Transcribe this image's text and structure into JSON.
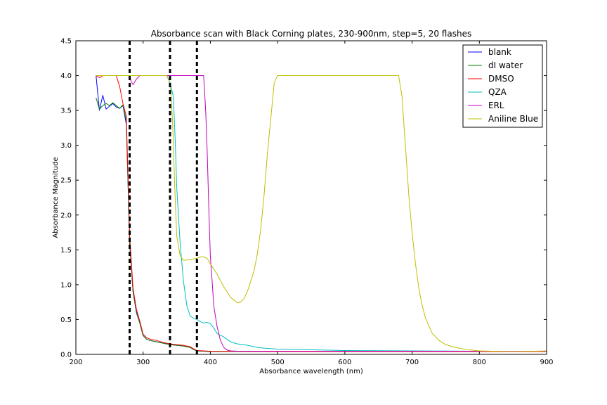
{
  "chart_data": {
    "type": "line",
    "title": "Absorbance scan with Black Corning plates, 230-900nm, step=5, 20 flashes",
    "xlabel": "Absorbance wavelength (nm)",
    "ylabel": "Absorbance Magnitude",
    "xlim": [
      200,
      900
    ],
    "ylim": [
      0,
      4.5
    ],
    "xticks": [
      200,
      300,
      400,
      500,
      600,
      700,
      800,
      900
    ],
    "yticks": [
      0.0,
      0.5,
      1.0,
      1.5,
      2.0,
      2.5,
      3.0,
      3.5,
      4.0,
      4.5
    ],
    "xtick_labels": [
      "200",
      "300",
      "400",
      "500",
      "600",
      "700",
      "800",
      "900"
    ],
    "ytick_labels": [
      "0.0",
      "0.5",
      "1.0",
      "1.5",
      "2.0",
      "2.5",
      "3.0",
      "3.5",
      "4.0",
      "4.5"
    ],
    "grid": false,
    "legend_position": "top-right",
    "vlines": [
      {
        "x": 280,
        "style": "dashed",
        "color": "#000000"
      },
      {
        "x": 340,
        "style": "dashed",
        "color": "#000000"
      },
      {
        "x": 380,
        "style": "dashed",
        "color": "#000000"
      }
    ],
    "series": [
      {
        "name": "blank",
        "color": "#0000ff",
        "points": [
          [
            230,
            4.0
          ],
          [
            235,
            3.5
          ],
          [
            240,
            3.72
          ],
          [
            245,
            3.52
          ],
          [
            250,
            3.56
          ],
          [
            255,
            3.6
          ],
          [
            260,
            3.55
          ],
          [
            265,
            3.53
          ],
          [
            270,
            3.57
          ],
          [
            275,
            3.3
          ],
          [
            278,
            2.3
          ],
          [
            280,
            1.6
          ],
          [
            285,
            0.9
          ],
          [
            290,
            0.6
          ],
          [
            295,
            0.45
          ],
          [
            300,
            0.27
          ],
          [
            305,
            0.22
          ],
          [
            310,
            0.2
          ],
          [
            320,
            0.18
          ],
          [
            330,
            0.16
          ],
          [
            340,
            0.14
          ],
          [
            350,
            0.13
          ],
          [
            360,
            0.12
          ],
          [
            370,
            0.1
          ],
          [
            375,
            0.07
          ],
          [
            380,
            0.05
          ],
          [
            390,
            0.045
          ],
          [
            400,
            0.04
          ],
          [
            500,
            0.04
          ],
          [
            600,
            0.04
          ],
          [
            700,
            0.04
          ],
          [
            800,
            0.04
          ],
          [
            900,
            0.04
          ]
        ]
      },
      {
        "name": "dI water",
        "color": "#008000",
        "points": [
          [
            230,
            3.68
          ],
          [
            235,
            3.52
          ],
          [
            240,
            3.57
          ],
          [
            245,
            3.6
          ],
          [
            250,
            3.57
          ],
          [
            255,
            3.61
          ],
          [
            260,
            3.57
          ],
          [
            265,
            3.53
          ],
          [
            270,
            3.58
          ],
          [
            275,
            3.35
          ],
          [
            278,
            2.3
          ],
          [
            280,
            1.6
          ],
          [
            285,
            0.9
          ],
          [
            290,
            0.62
          ],
          [
            295,
            0.45
          ],
          [
            300,
            0.27
          ],
          [
            305,
            0.22
          ],
          [
            310,
            0.2
          ],
          [
            320,
            0.18
          ],
          [
            330,
            0.16
          ],
          [
            340,
            0.14
          ],
          [
            350,
            0.13
          ],
          [
            360,
            0.12
          ],
          [
            370,
            0.1
          ],
          [
            375,
            0.07
          ],
          [
            380,
            0.05
          ],
          [
            390,
            0.045
          ],
          [
            400,
            0.04
          ],
          [
            500,
            0.04
          ],
          [
            600,
            0.04
          ],
          [
            700,
            0.04
          ],
          [
            800,
            0.04
          ],
          [
            900,
            0.04
          ]
        ]
      },
      {
        "name": "DMSO",
        "color": "#ff0000",
        "points": [
          [
            230,
            4.0
          ],
          [
            235,
            3.97
          ],
          [
            240,
            4.0
          ],
          [
            255,
            4.0
          ],
          [
            260,
            4.0
          ],
          [
            265,
            3.85
          ],
          [
            270,
            3.6
          ],
          [
            275,
            3.42
          ],
          [
            278,
            2.4
          ],
          [
            280,
            1.7
          ],
          [
            285,
            0.95
          ],
          [
            290,
            0.65
          ],
          [
            295,
            0.48
          ],
          [
            300,
            0.29
          ],
          [
            305,
            0.24
          ],
          [
            310,
            0.22
          ],
          [
            320,
            0.2
          ],
          [
            330,
            0.17
          ],
          [
            340,
            0.15
          ],
          [
            350,
            0.14
          ],
          [
            360,
            0.13
          ],
          [
            370,
            0.11
          ],
          [
            375,
            0.08
          ],
          [
            380,
            0.055
          ],
          [
            390,
            0.05
          ],
          [
            400,
            0.045
          ],
          [
            500,
            0.04
          ],
          [
            600,
            0.04
          ],
          [
            700,
            0.04
          ],
          [
            800,
            0.04
          ],
          [
            900,
            0.04
          ]
        ]
      },
      {
        "name": "QZA",
        "color": "#00bfbf",
        "points": [
          [
            230,
            4.0
          ],
          [
            335,
            4.0
          ],
          [
            340,
            3.9
          ],
          [
            345,
            3.7
          ],
          [
            348,
            3.0
          ],
          [
            350,
            2.4
          ],
          [
            355,
            1.6
          ],
          [
            360,
            1.05
          ],
          [
            365,
            0.7
          ],
          [
            370,
            0.55
          ],
          [
            375,
            0.52
          ],
          [
            380,
            0.5
          ],
          [
            385,
            0.47
          ],
          [
            390,
            0.45
          ],
          [
            395,
            0.46
          ],
          [
            400,
            0.44
          ],
          [
            405,
            0.38
          ],
          [
            410,
            0.3
          ],
          [
            420,
            0.25
          ],
          [
            430,
            0.18
          ],
          [
            440,
            0.15
          ],
          [
            450,
            0.14
          ],
          [
            460,
            0.12
          ],
          [
            470,
            0.1
          ],
          [
            480,
            0.09
          ],
          [
            500,
            0.075
          ],
          [
            550,
            0.065
          ],
          [
            600,
            0.055
          ],
          [
            700,
            0.05
          ],
          [
            800,
            0.045
          ],
          [
            900,
            0.045
          ]
        ]
      },
      {
        "name": "ERL",
        "color": "#bf00bf",
        "points": [
          [
            230,
            4.0
          ],
          [
            275,
            4.0
          ],
          [
            280,
            4.0
          ],
          [
            282,
            3.92
          ],
          [
            285,
            3.87
          ],
          [
            290,
            3.95
          ],
          [
            295,
            4.0
          ],
          [
            385,
            4.0
          ],
          [
            390,
            4.0
          ],
          [
            393,
            3.5
          ],
          [
            395,
            3.0
          ],
          [
            398,
            2.0
          ],
          [
            400,
            1.4
          ],
          [
            403,
            1.0
          ],
          [
            405,
            0.7
          ],
          [
            410,
            0.4
          ],
          [
            415,
            0.2
          ],
          [
            420,
            0.1
          ],
          [
            425,
            0.06
          ],
          [
            430,
            0.05
          ],
          [
            440,
            0.045
          ],
          [
            500,
            0.045
          ],
          [
            600,
            0.045
          ],
          [
            700,
            0.045
          ],
          [
            800,
            0.045
          ],
          [
            900,
            0.045
          ]
        ]
      },
      {
        "name": "Aniline Blue",
        "color": "#bfbf00",
        "points": [
          [
            230,
            4.0
          ],
          [
            335,
            4.0
          ],
          [
            338,
            3.95
          ],
          [
            341,
            3.8
          ],
          [
            344,
            3.3
          ],
          [
            347,
            2.4
          ],
          [
            350,
            1.7
          ],
          [
            355,
            1.42
          ],
          [
            360,
            1.35
          ],
          [
            370,
            1.36
          ],
          [
            380,
            1.38
          ],
          [
            385,
            1.4
          ],
          [
            390,
            1.4
          ],
          [
            395,
            1.38
          ],
          [
            400,
            1.3
          ],
          [
            410,
            1.15
          ],
          [
            420,
            0.97
          ],
          [
            430,
            0.82
          ],
          [
            440,
            0.74
          ],
          [
            445,
            0.75
          ],
          [
            450,
            0.8
          ],
          [
            455,
            0.9
          ],
          [
            460,
            1.05
          ],
          [
            465,
            1.2
          ],
          [
            470,
            1.45
          ],
          [
            475,
            1.8
          ],
          [
            480,
            2.3
          ],
          [
            485,
            2.9
          ],
          [
            490,
            3.4
          ],
          [
            495,
            3.9
          ],
          [
            500,
            4.0
          ],
          [
            600,
            4.0
          ],
          [
            680,
            4.0
          ],
          [
            685,
            3.7
          ],
          [
            690,
            3.0
          ],
          [
            695,
            2.3
          ],
          [
            700,
            1.75
          ],
          [
            705,
            1.3
          ],
          [
            710,
            0.95
          ],
          [
            715,
            0.7
          ],
          [
            720,
            0.52
          ],
          [
            730,
            0.3
          ],
          [
            740,
            0.2
          ],
          [
            750,
            0.14
          ],
          [
            760,
            0.11
          ],
          [
            770,
            0.09
          ],
          [
            780,
            0.07
          ],
          [
            790,
            0.06
          ],
          [
            800,
            0.05
          ],
          [
            820,
            0.045
          ],
          [
            850,
            0.04
          ],
          [
            880,
            0.045
          ],
          [
            900,
            0.05
          ]
        ]
      }
    ]
  }
}
